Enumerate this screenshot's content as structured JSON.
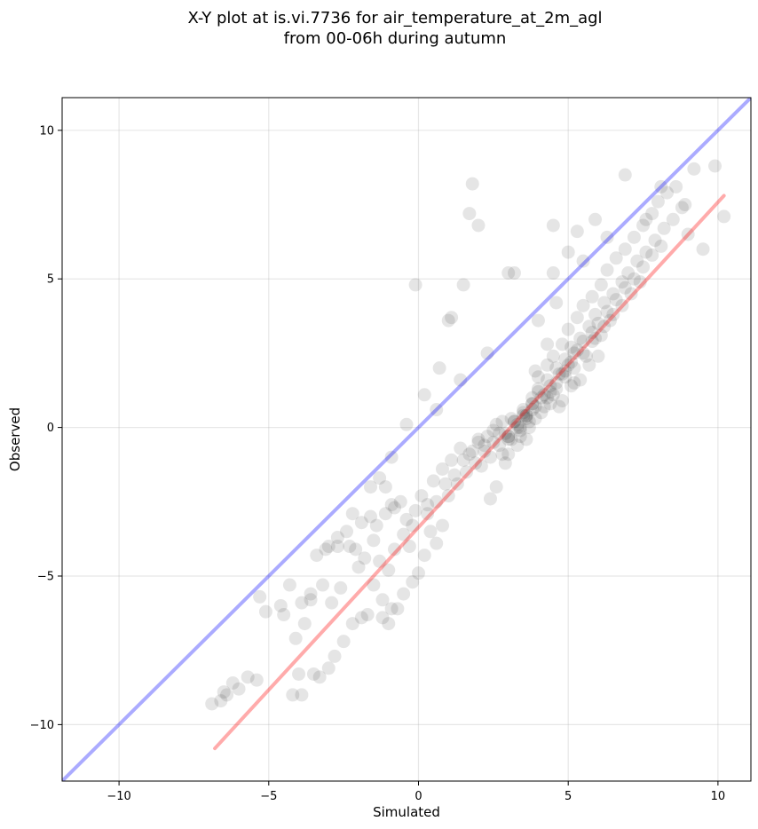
{
  "chart_data": {
    "type": "scatter",
    "title": "X-Y plot at is.vi.7736 for air_temperature_at_2m_agl",
    "subtitle": "from 00-06h during autumn",
    "xlabel": "Simulated",
    "ylabel": "Observed",
    "xlim": [
      -11.9,
      11.1
    ],
    "ylim": [
      -11.9,
      11.1
    ],
    "x_ticks": [
      -10,
      -5,
      0,
      5,
      10
    ],
    "y_ticks": [
      -10,
      -5,
      0,
      5,
      10
    ],
    "x_tick_labels": [
      "−10",
      "−5",
      "0",
      "5",
      "10"
    ],
    "y_tick_labels": [
      "−10",
      "−5",
      "0",
      "5",
      "10"
    ],
    "grid": true,
    "colors": {
      "points": "#000000",
      "identity_line": "#0000ff",
      "fit_line": "#ff0000"
    },
    "reference_lines": [
      {
        "kind": "identity",
        "x": [
          -11.9,
          11.1
        ],
        "y": [
          -11.9,
          11.1
        ]
      },
      {
        "kind": "regression",
        "x": [
          -6.8,
          10.2
        ],
        "y": [
          -10.8,
          7.8
        ]
      }
    ],
    "points": {
      "x": [
        -6.9,
        -6.6,
        -6.4,
        -6.0,
        -5.7,
        -5.4,
        -5.3,
        -4.6,
        -4.5,
        -4.2,
        -4.0,
        -3.8,
        -3.5,
        -3.3,
        -3.0,
        -2.8,
        -2.5,
        -2.2,
        -1.9,
        -1.7,
        -4.1,
        -3.9,
        -3.6,
        -3.2,
        -2.9,
        -2.6,
        -2.3,
        -2.0,
        -1.8,
        -1.5,
        -1.3,
        -1.0,
        -0.8,
        -0.5,
        -0.3,
        -3.4,
        -3.0,
        -2.7,
        -2.4,
        -2.1,
        -1.9,
        -1.6,
        -1.4,
        -1.1,
        -0.9,
        -0.6,
        -0.4,
        -0.1,
        0.1,
        0.3,
        -1.2,
        -1.0,
        -0.7,
        -0.5,
        -0.2,
        0.0,
        0.2,
        0.4,
        0.6,
        0.8,
        -1.5,
        -1.2,
        -0.9,
        -1.3,
        -1.1,
        -0.8,
        -0.2,
        0.3,
        0.6,
        0.9,
        1.2,
        1.5,
        1.8,
        2.0,
        2.3,
        2.6,
        2.9,
        3.1,
        3.4,
        3.7,
        0.5,
        0.8,
        1.1,
        1.4,
        1.7,
        2.0,
        2.2,
        2.5,
        2.8,
        3.0,
        3.3,
        3.6,
        3.9,
        4.2,
        4.5,
        4.8,
        5.1,
        5.4,
        5.7,
        6.0,
        1.0,
        1.3,
        1.6,
        1.9,
        2.2,
        2.5,
        2.7,
        3.0,
        3.3,
        3.6,
        3.8,
        4.1,
        4.4,
        4.6,
        4.9,
        5.2,
        5.5,
        5.8,
        6.1,
        6.4,
        2.1,
        2.4,
        2.7,
        3.0,
        3.2,
        3.5,
        3.8,
        4.0,
        4.3,
        4.6,
        4.8,
        5.1,
        5.3,
        5.6,
        5.9,
        6.2,
        6.5,
        6.8,
        7.1,
        7.4,
        2.8,
        3.1,
        3.4,
        3.6,
        3.9,
        4.2,
        4.4,
        4.7,
        5.0,
        5.2,
        5.5,
        5.8,
        6.0,
        6.3,
        6.6,
        6.9,
        7.2,
        7.5,
        7.8,
        8.1,
        3.5,
        3.8,
        4.0,
        4.3,
        4.6,
        4.9,
        5.1,
        5.4,
        5.7,
        5.9,
        6.2,
        6.5,
        6.8,
        7.0,
        7.3,
        7.6,
        7.9,
        8.2,
        8.5,
        8.8,
        4.0,
        4.3,
        4.5,
        4.8,
        5.0,
        5.3,
        5.5,
        5.8,
        6.1,
        6.3,
        6.6,
        6.9,
        7.2,
        7.5,
        7.8,
        8.0,
        8.3,
        8.6,
        8.9,
        9.2,
        1.8,
        2.0,
        1.7,
        0.6,
        -0.1,
        1.1,
        1.4,
        2.3,
        3.0,
        4.5,
        5.3,
        5.9,
        6.3,
        6.9,
        7.6,
        8.1,
        9.0,
        9.5,
        9.9,
        10.2,
        3.2,
        3.4,
        3.7,
        3.3,
        3.5,
        3.0,
        3.8,
        4.1,
        2.9,
        3.6,
        4.4,
        4.9,
        5.2,
        4.7,
        4.3,
        3.9,
        2.6,
        2.4,
        4.0,
        4.6,
        5.5,
        5.0,
        4.5,
        3.2,
        1.5,
        1.0,
        0.7,
        0.2,
        -0.4,
        -0.9,
        -1.6,
        -2.2,
        -2.7,
        -3.1,
        -3.6,
        -4.3,
        -5.1,
        -6.2,
        -6.5,
        -3.9
      ],
      "y": [
        -9.3,
        -9.2,
        -9.0,
        -8.8,
        -8.4,
        -8.5,
        -5.7,
        -6.0,
        -6.3,
        -9.0,
        -8.3,
        -6.6,
        -8.3,
        -8.4,
        -8.1,
        -7.7,
        -7.2,
        -6.6,
        -6.4,
        -6.3,
        -7.1,
        -5.9,
        -5.6,
        -5.3,
        -5.9,
        -5.4,
        -4.0,
        -4.7,
        -4.4,
        -3.8,
        -4.5,
        -4.8,
        -4.1,
        -3.6,
        -4.0,
        -4.3,
        -4.0,
        -3.7,
        -3.5,
        -4.1,
        -3.2,
        -3.0,
        -3.3,
        -2.9,
        -2.6,
        -2.5,
        -3.1,
        -2.8,
        -2.3,
        -2.6,
        -6.4,
        -6.6,
        -6.1,
        -5.6,
        -5.2,
        -4.9,
        -4.3,
        -3.5,
        -3.9,
        -3.3,
        -5.3,
        -5.8,
        -6.1,
        -1.7,
        -2.0,
        -2.7,
        -3.3,
        -2.9,
        -2.5,
        -1.9,
        -1.6,
        -1.1,
        -0.8,
        -0.5,
        -0.3,
        0.1,
        -0.2,
        0.3,
        -0.1,
        0.2,
        -1.8,
        -1.4,
        -1.1,
        -0.7,
        -0.9,
        -0.4,
        -0.6,
        -0.1,
        0.2,
        -0.3,
        0.1,
        0.4,
        0.3,
        0.7,
        1.1,
        0.9,
        1.4,
        1.6,
        2.1,
        2.4,
        -2.3,
        -1.9,
        -1.5,
        -1.2,
        -0.8,
        -0.5,
        -0.2,
        -0.4,
        0.0,
        0.4,
        0.6,
        1.0,
        0.8,
        1.3,
        1.7,
        2.0,
        2.5,
        2.9,
        3.1,
        3.6,
        -1.3,
        -1.0,
        -0.6,
        -0.3,
        0.2,
        0.5,
        0.8,
        1.2,
        1.0,
        1.5,
        1.8,
        2.2,
        2.6,
        2.4,
        3.0,
        3.4,
        3.8,
        4.1,
        4.5,
        4.9,
        -0.9,
        -0.4,
        0.0,
        0.3,
        0.7,
        1.1,
        1.4,
        1.8,
        2.1,
        2.5,
        2.9,
        3.2,
        3.5,
        3.9,
        4.3,
        4.7,
        5.0,
        5.4,
        5.8,
        6.1,
        0.6,
        1.0,
        1.3,
        1.6,
        2.0,
        2.3,
        2.7,
        3.0,
        3.4,
        3.8,
        4.2,
        4.5,
        4.9,
        5.2,
        5.6,
        5.9,
        6.3,
        6.7,
        7.0,
        7.4,
        1.7,
        2.1,
        2.4,
        2.8,
        3.3,
        3.7,
        4.1,
        4.4,
        4.8,
        5.3,
        5.7,
        6.0,
        6.4,
        6.8,
        7.2,
        7.6,
        7.9,
        8.1,
        7.5,
        8.7,
        8.2,
        6.8,
        7.2,
        0.6,
        4.8,
        3.7,
        1.6,
        2.5,
        5.2,
        6.8,
        6.6,
        7.0,
        6.4,
        8.5,
        7.0,
        8.1,
        6.5,
        6.0,
        8.8,
        7.1,
        0.2,
        -0.3,
        0.0,
        -0.6,
        0.4,
        -0.9,
        0.8,
        0.5,
        -1.2,
        -0.4,
        1.2,
        1.9,
        1.5,
        0.7,
        2.8,
        1.9,
        -2.0,
        -2.4,
        3.6,
        4.2,
        5.6,
        5.9,
        5.2,
        5.2,
        4.8,
        3.6,
        2.0,
        1.1,
        0.1,
        -1.0,
        -2.0,
        -2.9,
        -4.0,
        -4.1,
        -5.8,
        -5.3,
        -6.2,
        -8.6,
        -8.9,
        -9.0
      ]
    }
  }
}
